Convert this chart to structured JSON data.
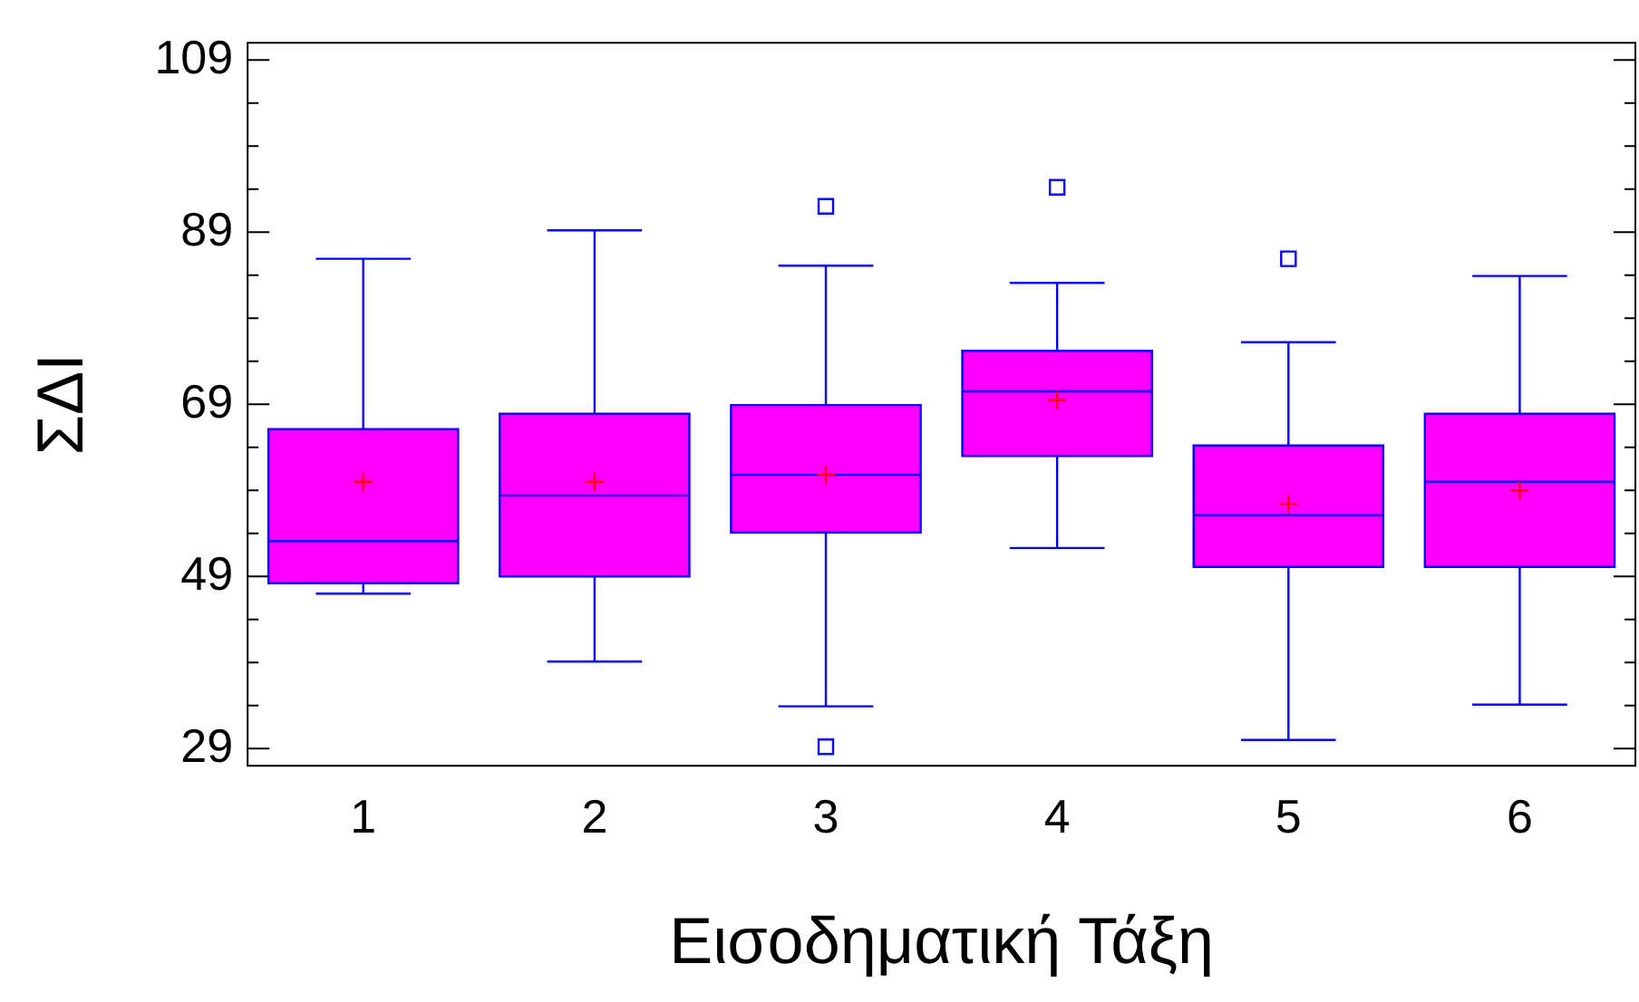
{
  "chart_data": {
    "type": "box",
    "xlabel": "Εισοδηματική Τάξη",
    "ylabel": "ΣΔΙ",
    "categories": [
      "1",
      "2",
      "3",
      "4",
      "5",
      "6"
    ],
    "color": "#ff00ff",
    "ylim": [
      27,
      111
    ],
    "yticks": [
      29,
      {
        "value": 34,
        "label": null
      },
      {
        "value": 39,
        "label": null
      },
      {
        "value": 44,
        "label": null
      },
      49,
      {
        "value": 54,
        "label": null
      },
      {
        "value": 59,
        "label": null
      },
      {
        "value": 64,
        "label": null
      },
      69,
      {
        "value": 74,
        "label": null
      },
      {
        "value": 79,
        "label": null
      },
      {
        "value": 84,
        "label": null
      },
      89,
      {
        "value": 94,
        "label": null
      },
      {
        "value": 99,
        "label": null
      },
      {
        "value": 104,
        "label": null
      },
      109
    ],
    "grid": false,
    "legend": false,
    "boxes": [
      {
        "low": 47,
        "q1": 48.2,
        "median": 53.1,
        "q3": 66.1,
        "high": 85.9,
        "mean": 60
      },
      {
        "low": 39.1,
        "q1": 49,
        "median": 58.4,
        "q3": 67.9,
        "high": 89.2,
        "mean": 60
      },
      {
        "low": 33.9,
        "q1": 54.1,
        "median": 60.8,
        "q3": 68.9,
        "high": 85.1,
        "mean": 60.8,
        "outliers": [
          92,
          29.2
        ]
      },
      {
        "low": 52.3,
        "q1": 63,
        "median": 70.5,
        "q3": 75.2,
        "high": 83.1,
        "mean": 69.5,
        "outliers": [
          94.2
        ]
      },
      {
        "low": 30,
        "q1": 50.1,
        "median": 56.1,
        "q3": 64.2,
        "high": 76.2,
        "mean": 57.4,
        "outliers": [
          85.9
        ]
      },
      {
        "low": 34.1,
        "q1": 50.1,
        "median": 60,
        "q3": 67.9,
        "high": 83.9,
        "mean": 59
      }
    ]
  }
}
